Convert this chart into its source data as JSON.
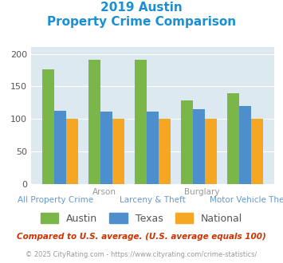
{
  "title_line1": "2019 Austin",
  "title_line2": "Property Crime Comparison",
  "title_color": "#1a8fd1",
  "categories": [
    "All Property Crime",
    "Arson",
    "Larceny & Theft",
    "Burglary",
    "Motor Vehicle Theft"
  ],
  "x_labels_top": [
    "",
    "Arson",
    "",
    "Burglary",
    ""
  ],
  "x_labels_bottom": [
    "All Property Crime",
    "",
    "Larceny & Theft",
    "",
    "Motor Vehicle Theft"
  ],
  "austin_values": [
    176,
    191,
    191,
    129,
    139
  ],
  "texas_values": [
    113,
    111,
    111,
    115,
    120
  ],
  "national_values": [
    100,
    100,
    100,
    100,
    100
  ],
  "austin_color": "#7ab648",
  "texas_color": "#4d8fcc",
  "national_color": "#f5a623",
  "bg_color": "#dce9f0",
  "ylim": [
    0,
    210
  ],
  "yticks": [
    0,
    50,
    100,
    150,
    200
  ],
  "legend_labels": [
    "Austin",
    "Texas",
    "National"
  ],
  "footnote1": "Compared to U.S. average. (U.S. average equals 100)",
  "footnote2": "© 2025 CityRating.com - https://www.cityrating.com/crime-statistics/",
  "footnote1_color": "#cc3300",
  "footnote2_color": "#999999",
  "top_label_color": "#999999",
  "bottom_label_color": "#6699cc"
}
